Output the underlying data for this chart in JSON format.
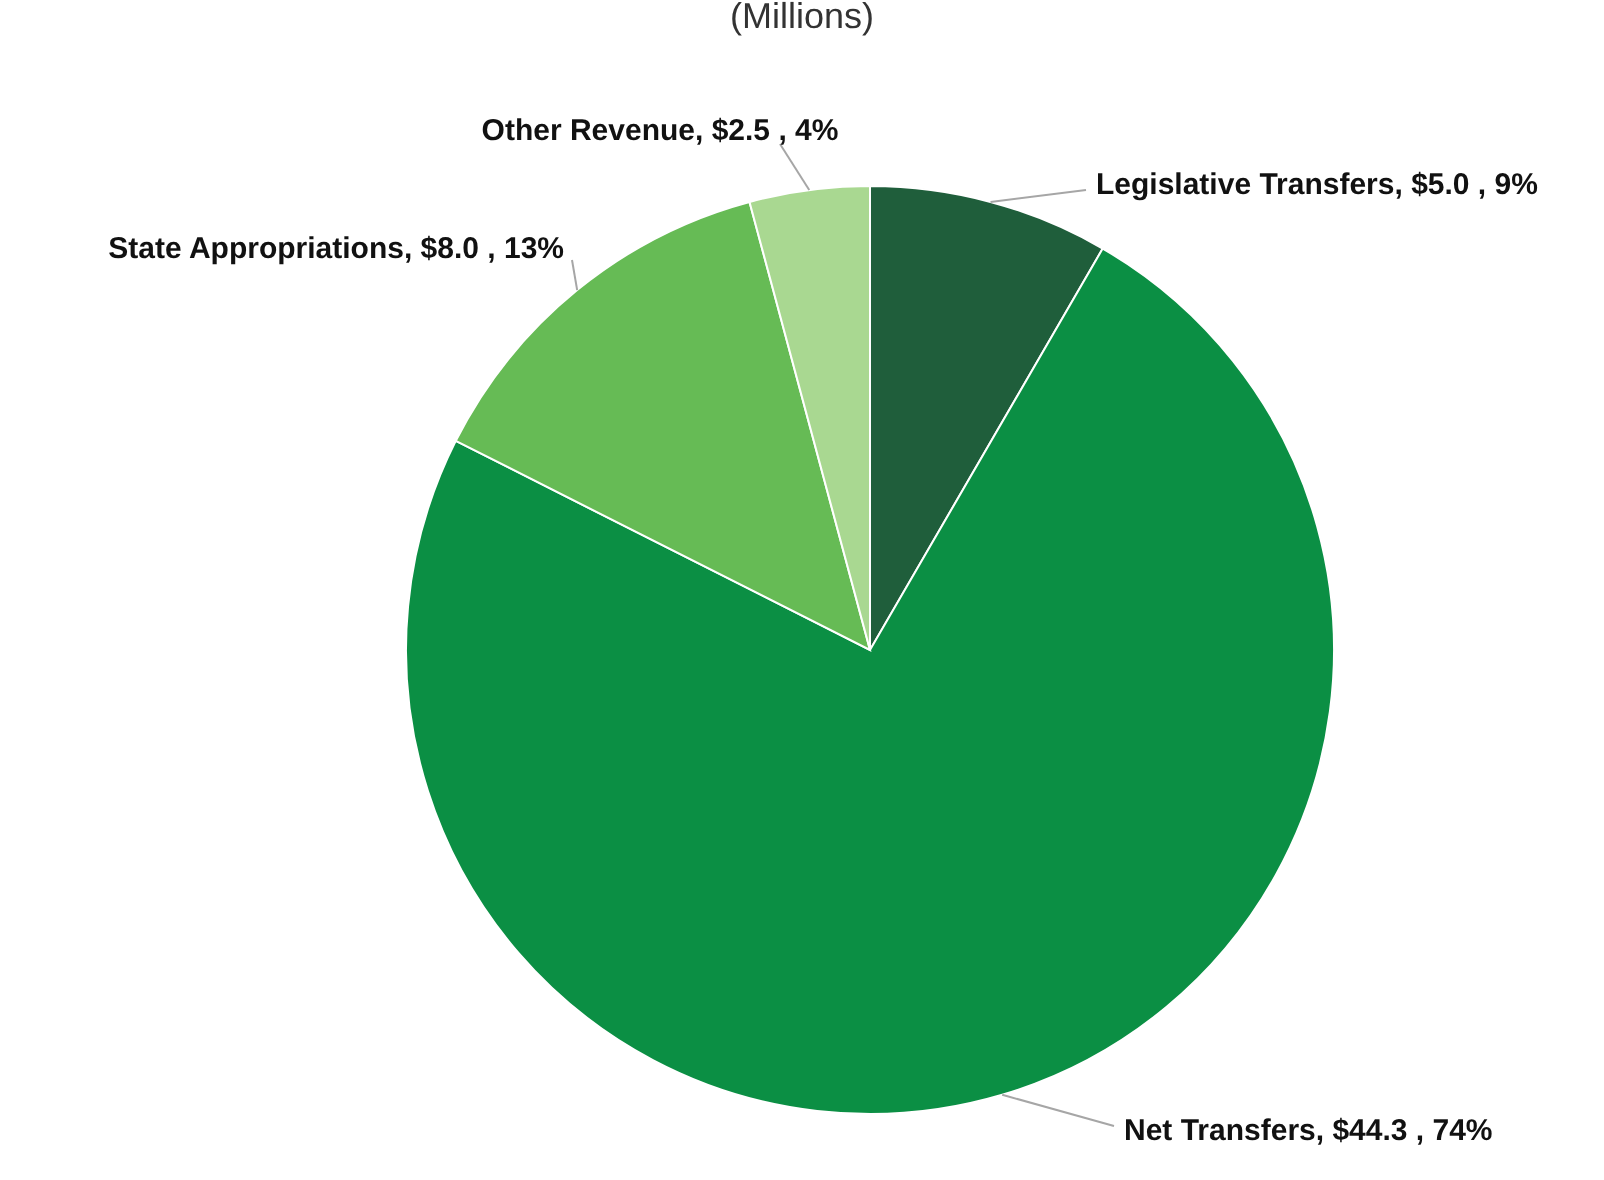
{
  "chart_data": {
    "type": "pie",
    "title": "(Millions)",
    "categories": [
      "Legislative Transfers",
      "Net Transfers",
      "State Appropriations",
      "Other Revenue"
    ],
    "values": [
      5.0,
      44.3,
      8.0,
      2.5
    ],
    "value_labels": [
      "$5.0 , 9%",
      "$44.3 , 74%",
      "$8.0 , 13%",
      "$2.5 , 4%"
    ],
    "colors": [
      "#1f5e3b",
      "#0b8f44",
      "#66bb55",
      "#a9d891"
    ]
  }
}
